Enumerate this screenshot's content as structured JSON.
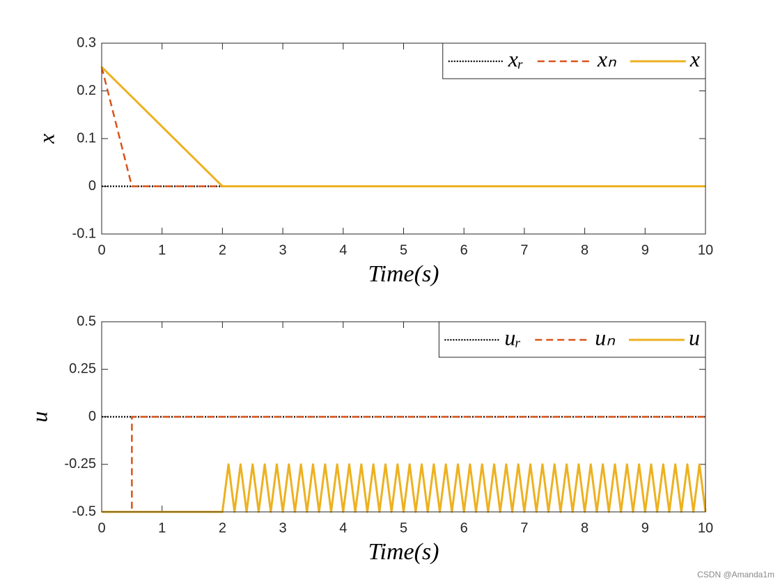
{
  "chart_data": [
    {
      "type": "line",
      "xlabel": "Time(s)",
      "ylabel": "x",
      "xlim": [
        0,
        10
      ],
      "ylim": [
        -0.1,
        0.3
      ],
      "xticks": [
        0,
        1,
        2,
        3,
        4,
        5,
        6,
        7,
        8,
        9,
        10
      ],
      "yticks": [
        -0.1,
        0,
        0.1,
        0.2,
        0.3
      ],
      "legend": "upper right",
      "series": [
        {
          "name": "xᵣ",
          "color": "#000000",
          "style": "dotted",
          "x": [
            0,
            10
          ],
          "values": [
            0,
            0
          ]
        },
        {
          "name": "xₙ",
          "color": "#d95319",
          "style": "dashed",
          "x": [
            0,
            0.5,
            10
          ],
          "values": [
            0.25,
            0,
            0
          ]
        },
        {
          "name": "x",
          "color": "#edb120",
          "style": "solid",
          "x": [
            0,
            2,
            10
          ],
          "values": [
            0.25,
            0,
            0
          ]
        }
      ]
    },
    {
      "type": "line",
      "xlabel": "Time(s)",
      "ylabel": "u",
      "xlim": [
        0,
        10
      ],
      "ylim": [
        -0.5,
        0.5
      ],
      "xticks": [
        0,
        1,
        2,
        3,
        4,
        5,
        6,
        7,
        8,
        9,
        10
      ],
      "yticks": [
        -0.5,
        -0.25,
        0,
        0.25,
        0.5
      ],
      "legend": "upper right",
      "series": [
        {
          "name": "uᵣ",
          "color": "#000000",
          "style": "dotted",
          "x": [
            0,
            10
          ],
          "values": [
            0,
            0
          ]
        },
        {
          "name": "uₙ",
          "color": "#d95319",
          "style": "dashed",
          "x": [
            0,
            0.5,
            0.5,
            10
          ],
          "values": [
            -0.5,
            -0.5,
            0,
            0
          ]
        },
        {
          "name": "u",
          "color": "#edb120",
          "style": "solid",
          "x": [
            0,
            2,
            2.1,
            2.2,
            2.3,
            2.4,
            2.5,
            2.6,
            2.7,
            2.8,
            2.9,
            3,
            3.1,
            3.2,
            3.3,
            3.4,
            3.5,
            3.6,
            3.7,
            3.8,
            3.9,
            4,
            4.1,
            4.2,
            4.3,
            4.4,
            4.5,
            4.6,
            4.7,
            4.8,
            4.9,
            5,
            5.1,
            5.2,
            5.3,
            5.4,
            5.5,
            5.6,
            5.7,
            5.8,
            5.9,
            6,
            6.1,
            6.2,
            6.3,
            6.4,
            6.5,
            6.6,
            6.7,
            6.8,
            6.9,
            7,
            7.1,
            7.2,
            7.3,
            7.4,
            7.5,
            7.6,
            7.7,
            7.8,
            7.9,
            8,
            8.1,
            8.2,
            8.3,
            8.4,
            8.5,
            8.6,
            8.7,
            8.8,
            8.9,
            9,
            9.1,
            9.2,
            9.3,
            9.4,
            9.5,
            9.6,
            9.7,
            9.8,
            9.9,
            10
          ],
          "values": [
            -0.5,
            -0.5,
            -0.25,
            -0.5,
            -0.25,
            -0.5,
            -0.25,
            -0.5,
            -0.25,
            -0.5,
            -0.25,
            -0.5,
            -0.25,
            -0.5,
            -0.25,
            -0.5,
            -0.25,
            -0.5,
            -0.25,
            -0.5,
            -0.25,
            -0.5,
            -0.25,
            -0.5,
            -0.25,
            -0.5,
            -0.25,
            -0.5,
            -0.25,
            -0.5,
            -0.25,
            -0.5,
            -0.25,
            -0.5,
            -0.25,
            -0.5,
            -0.25,
            -0.5,
            -0.25,
            -0.5,
            -0.25,
            -0.5,
            -0.25,
            -0.5,
            -0.25,
            -0.5,
            -0.25,
            -0.5,
            -0.25,
            -0.5,
            -0.25,
            -0.5,
            -0.25,
            -0.5,
            -0.25,
            -0.5,
            -0.25,
            -0.5,
            -0.25,
            -0.5,
            -0.25,
            -0.5,
            -0.25,
            -0.5,
            -0.25,
            -0.5,
            -0.25,
            -0.5,
            -0.25,
            -0.5,
            -0.25,
            -0.5,
            -0.25,
            -0.5,
            -0.25,
            -0.5,
            -0.25,
            -0.5,
            -0.25,
            -0.5,
            -0.25,
            -0.5
          ]
        }
      ]
    }
  ],
  "watermark": "CSDN @Amanda1m"
}
